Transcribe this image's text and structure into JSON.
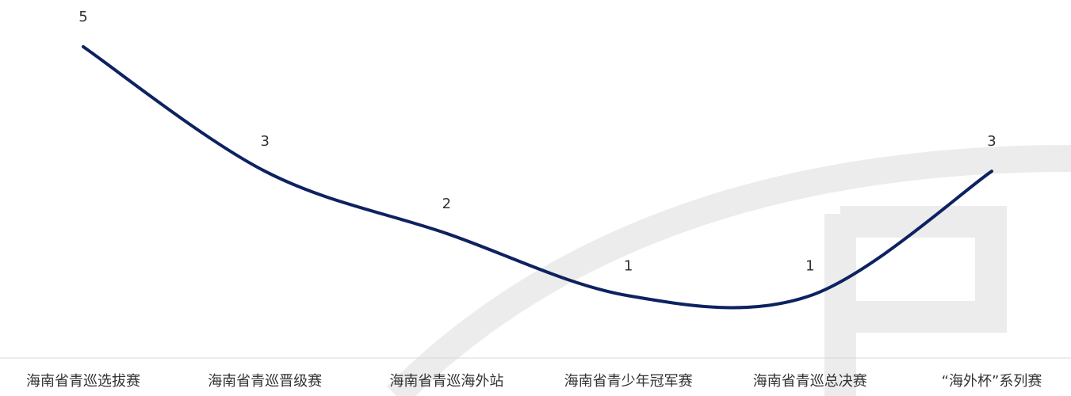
{
  "chart_data": {
    "type": "line",
    "categories": [
      "海南省青巡选拔赛",
      "海南省青巡晋级赛",
      "海南省青巡海外站",
      "海南省青少年冠军赛",
      "海南省青巡总决赛",
      "“海外杯”系列赛"
    ],
    "values": [
      5,
      3,
      2,
      1,
      1,
      3
    ],
    "color": "#0d2260",
    "smooth": true,
    "data_labels": true
  }
}
